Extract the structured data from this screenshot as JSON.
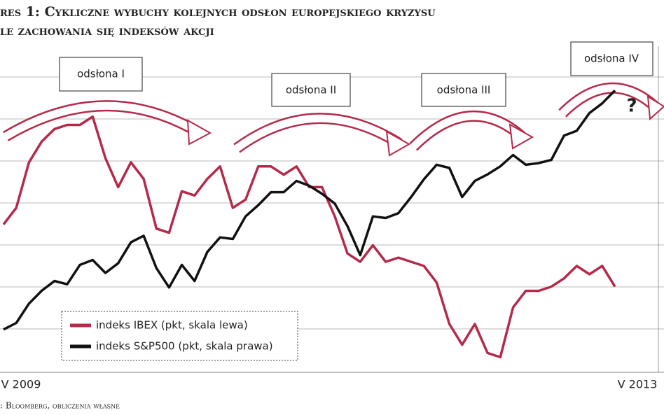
{
  "chart_data": {
    "type": "line",
    "title": "res 1: Cykliczne wybuchy kolejnych odsłon europejskiego kryzysu",
    "subtitle": "le zachowania się indeksów akcji",
    "source": ": Bloomberg, obliczenia własne",
    "annotations": [
      "odsłona I",
      "odsłona II",
      "odsłona III",
      "odsłona IV",
      "?"
    ],
    "categories": [
      "V 2009",
      null,
      null,
      null,
      null,
      null,
      null,
      null,
      null,
      null,
      null,
      null,
      null,
      null,
      null,
      null,
      null,
      null,
      null,
      null,
      null,
      null,
      null,
      null,
      null,
      null,
      null,
      null,
      null,
      null,
      null,
      null,
      null,
      null,
      null,
      null,
      null,
      null,
      null,
      null,
      null,
      null,
      null,
      null,
      null,
      null,
      null,
      null,
      "V 2013"
    ],
    "ylim": [
      5700,
      13800
    ],
    "y2lim": [
      750,
      1790
    ],
    "series": [
      {
        "name": "indeks IBEX (pkt, skala lewa)",
        "color": "#b5294a",
        "values": [
          9400,
          9800,
          10900,
          11400,
          11700,
          11800,
          11800,
          12000,
          11000,
          10300,
          10900,
          10500,
          9300,
          9200,
          10200,
          10100,
          10500,
          10800,
          9800,
          10000,
          10800,
          10800,
          10600,
          10800,
          10300,
          10300,
          9600,
          8700,
          8500,
          8900,
          8500,
          8600,
          8500,
          8400,
          8000,
          7000,
          6500,
          7000,
          6300,
          6200,
          7400,
          7800,
          7800,
          7900,
          8100,
          8400,
          8200,
          8400,
          7900
        ]
      },
      {
        "name": "indeks S&P500 (pkt, skala prawa)",
        "color": "#111111",
        "axis": "y2",
        "values": [
          900,
          920,
          980,
          1020,
          1050,
          1040,
          1100,
          1115,
          1075,
          1105,
          1170,
          1190,
          1090,
          1030,
          1100,
          1050,
          1140,
          1185,
          1180,
          1250,
          1285,
          1325,
          1325,
          1360,
          1345,
          1320,
          1290,
          1220,
          1130,
          1250,
          1245,
          1260,
          1310,
          1365,
          1410,
          1400,
          1310,
          1360,
          1380,
          1405,
          1440,
          1410,
          1415,
          1425,
          1500,
          1515,
          1570,
          1600,
          1640
        ]
      }
    ]
  }
}
